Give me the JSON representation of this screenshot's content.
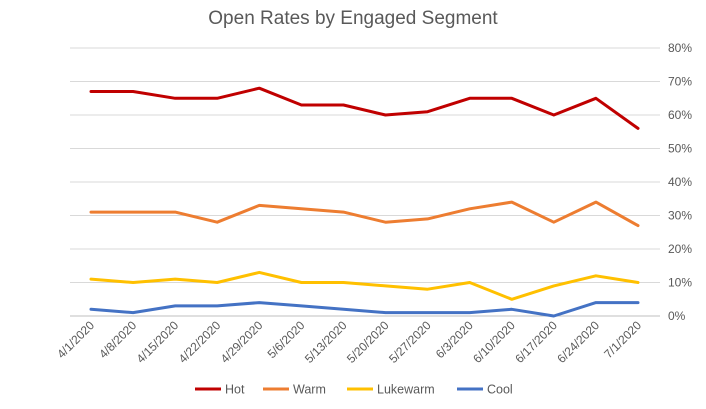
{
  "chart_data": {
    "type": "line",
    "title": "Open Rates by Engaged Segment",
    "xlabel": "",
    "ylabel": "",
    "x": [
      "4/1/2020",
      "4/8/2020",
      "4/15/2020",
      "4/22/2020",
      "4/29/2020",
      "5/6/2020",
      "5/13/2020",
      "5/20/2020",
      "5/27/2020",
      "6/3/2020",
      "6/10/2020",
      "6/17/2020",
      "6/24/2020",
      "7/1/2020"
    ],
    "ylim": [
      0,
      80
    ],
    "y_ticks": [
      "0%",
      "10%",
      "20%",
      "30%",
      "40%",
      "50%",
      "60%",
      "70%",
      "80%"
    ],
    "y_tick_values": [
      0,
      10,
      20,
      30,
      40,
      50,
      60,
      70,
      80
    ],
    "y_axis_position": "right",
    "grid": true,
    "legend_position": "bottom",
    "series": [
      {
        "name": "Hot",
        "color": "#C00000",
        "values": [
          67,
          67,
          65,
          65,
          68,
          63,
          63,
          60,
          61,
          65,
          65,
          60,
          65,
          56
        ]
      },
      {
        "name": "Warm",
        "color": "#ED7D31",
        "values": [
          31,
          31,
          31,
          28,
          33,
          32,
          31,
          28,
          29,
          32,
          34,
          28,
          34,
          27
        ]
      },
      {
        "name": "Lukewarm",
        "color": "#FFC000",
        "values": [
          11,
          10,
          11,
          10,
          13,
          10,
          10,
          9,
          8,
          10,
          5,
          9,
          12,
          10
        ]
      },
      {
        "name": "Cool",
        "color": "#4472C4",
        "values": [
          2,
          1,
          3,
          3,
          4,
          3,
          2,
          1,
          1,
          1,
          2,
          0,
          4,
          4
        ]
      }
    ]
  }
}
